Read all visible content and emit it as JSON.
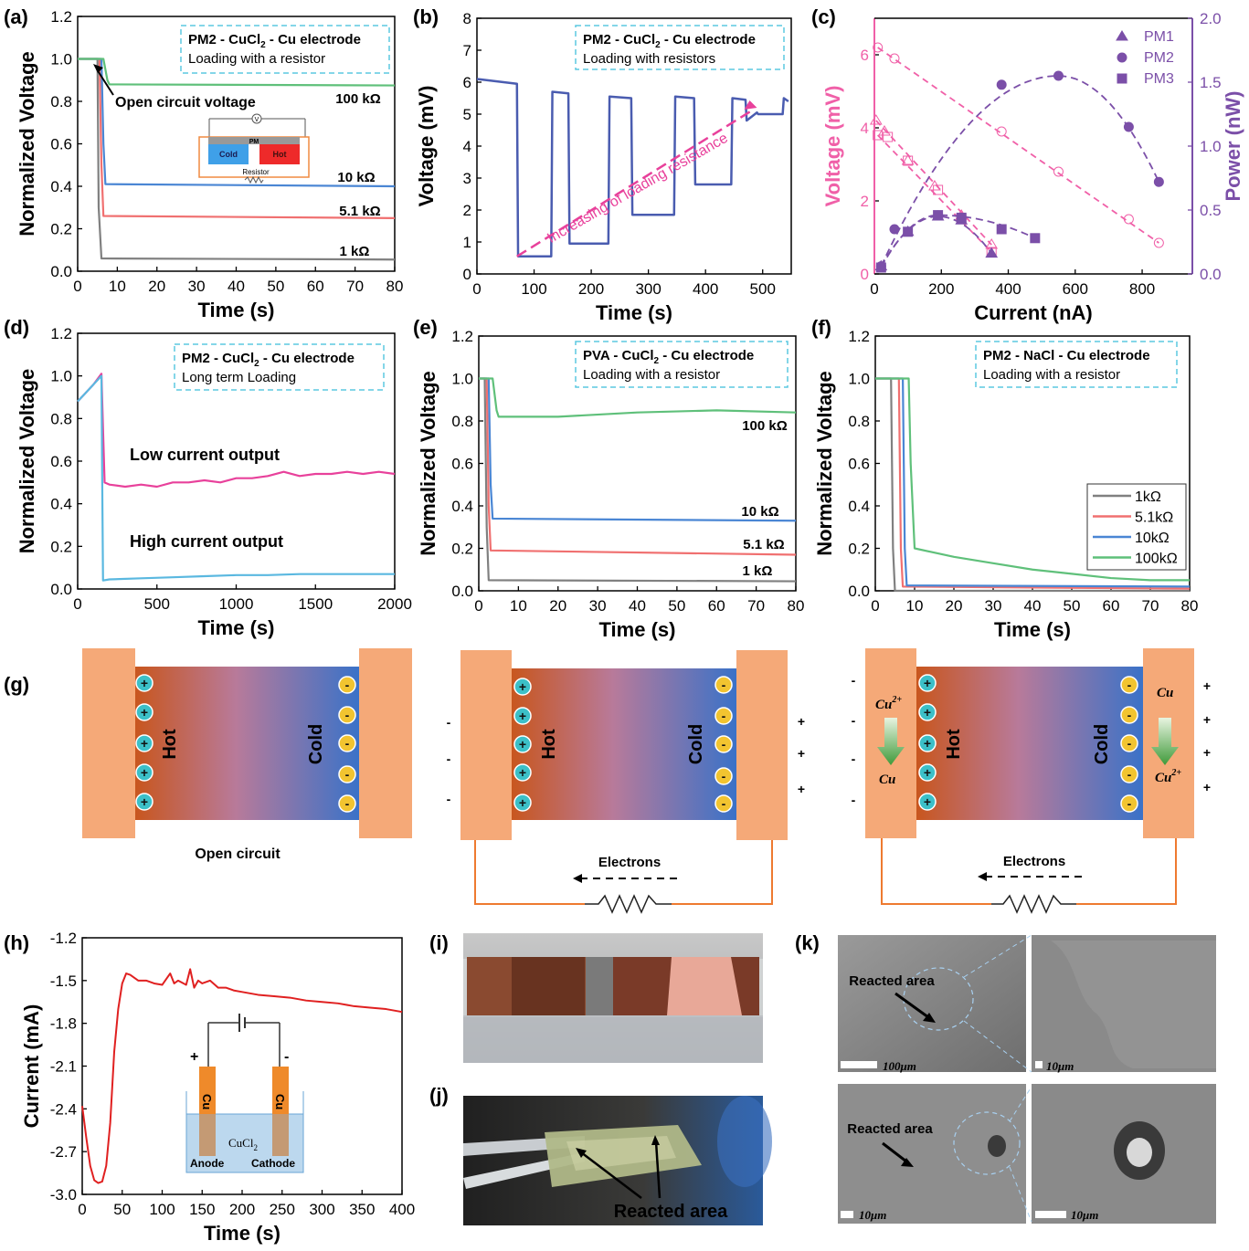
{
  "colors": {
    "gray": "#808080",
    "red": "#f07070",
    "blue": "#4a86d4",
    "green": "#5fc07a",
    "magenta": "#e8419b",
    "pink": "#f060a8",
    "purple": "#7b4fa8",
    "navy": "#4a5cb0",
    "cyan": "#5ab8e0",
    "orange": "#f5a978",
    "dash_box": "#5bc8e0",
    "trace_red": "#e02020"
  },
  "chart_data": [
    {
      "panel": "(a)",
      "type": "line",
      "box": [
        "PM2 - CuCl",
        "2",
        " - Cu electrode",
        "Loading with a resistor"
      ],
      "xlabel": "Time (s)",
      "ylabel": "Normalized Voltage",
      "xlim": [
        0,
        80
      ],
      "ylim": [
        0,
        1.2
      ],
      "xticks": [
        0,
        10,
        20,
        30,
        40,
        50,
        60,
        70,
        80
      ],
      "yticks": [
        0,
        0.2,
        0.4,
        0.6,
        0.8,
        1.0,
        1.2
      ],
      "series": [
        {
          "name": "1 kΩ",
          "color": "gray",
          "x": [
            0,
            5,
            5.3,
            6,
            80
          ],
          "y": [
            1.0,
            1.0,
            0.3,
            0.06,
            0.055
          ]
        },
        {
          "name": "5.1 kΩ",
          "color": "red",
          "x": [
            0,
            5.5,
            6,
            6.5,
            80
          ],
          "y": [
            1.0,
            1.0,
            0.5,
            0.26,
            0.25
          ]
        },
        {
          "name": "10 kΩ",
          "color": "blue",
          "x": [
            0,
            6,
            6.5,
            7,
            80
          ],
          "y": [
            1.0,
            1.0,
            0.6,
            0.41,
            0.4
          ]
        },
        {
          "name": "100 kΩ",
          "color": "green",
          "x": [
            0,
            6.5,
            7.5,
            8,
            80
          ],
          "y": [
            1.0,
            1.0,
            0.9,
            0.88,
            0.875
          ]
        }
      ],
      "annotations": [
        "Open circuit voltage",
        "100 kΩ",
        "10 kΩ",
        "5.1 kΩ",
        "1 kΩ"
      ],
      "inset": {
        "left": "Cold",
        "right": "Hot",
        "top": "PM",
        "bottom": "Resistor",
        "meter": "V"
      }
    },
    {
      "panel": "(b)",
      "type": "line",
      "box": [
        "PM2 - CuCl",
        "2",
        " - Cu electrode",
        "Loading with resistors"
      ],
      "xlabel": "Time (s)",
      "ylabel": "Voltage (mV)",
      "xlim": [
        0,
        550
      ],
      "ylim": [
        0,
        8
      ],
      "xticks": [
        0,
        100,
        200,
        300,
        400,
        500
      ],
      "yticks": [
        0,
        1,
        2,
        3,
        4,
        5,
        6,
        7,
        8
      ],
      "series": [
        {
          "name": "",
          "color": "navy",
          "x": [
            0,
            70,
            72,
            130,
            132,
            160,
            162,
            230,
            232,
            270,
            272,
            345,
            347,
            380,
            382,
            445,
            447,
            470,
            472,
            490,
            492,
            535,
            537,
            545
          ],
          "y": [
            6.1,
            5.95,
            0.55,
            0.55,
            5.7,
            5.65,
            0.95,
            0.95,
            5.55,
            5.5,
            1.85,
            1.85,
            5.55,
            5.5,
            2.8,
            2.8,
            5.5,
            5.45,
            4.8,
            5.05,
            5.0,
            5.0,
            5.5,
            5.4
          ]
        }
      ],
      "arrow_label": "Increasing of loading resistance"
    },
    {
      "panel": "(c)",
      "type": "scatter",
      "xlabel": "Current (nA)",
      "ylabel": "Voltage (mV)",
      "y2label": "Power (nW)",
      "xlim": [
        0,
        950
      ],
      "ylim": [
        0,
        7
      ],
      "y2lim": [
        0,
        2.0
      ],
      "xticks": [
        0,
        200,
        400,
        600,
        800
      ],
      "yticks": [
        0,
        2,
        4,
        6
      ],
      "y2ticks": [
        0.0,
        0.5,
        1.0,
        1.5,
        2.0
      ],
      "voltage_series": [
        {
          "name": "PM1",
          "x": [
            5,
            30,
            100,
            180,
            260,
            350
          ],
          "y": [
            4.2,
            3.9,
            3.1,
            2.4,
            1.6,
            0.8
          ]
        },
        {
          "name": "PM2",
          "x": [
            10,
            60,
            380,
            550,
            760,
            850
          ],
          "y": [
            6.2,
            5.9,
            3.9,
            2.8,
            1.5,
            0.85
          ]
        },
        {
          "name": "PM3",
          "x": [
            10,
            40,
            100,
            190,
            260,
            350
          ],
          "y": [
            3.8,
            3.75,
            3.1,
            2.3,
            1.5,
            0.6
          ]
        }
      ],
      "power_series": [
        {
          "name": "PM1",
          "x": [
            20,
            100,
            190,
            260,
            350
          ],
          "y": [
            0.06,
            0.33,
            0.45,
            0.42,
            0.16
          ]
        },
        {
          "name": "PM2",
          "x": [
            20,
            60,
            380,
            550,
            760,
            850
          ],
          "y": [
            0.06,
            0.35,
            1.48,
            1.55,
            1.15,
            0.72
          ]
        },
        {
          "name": "PM3",
          "x": [
            20,
            100,
            190,
            260,
            380,
            480
          ],
          "y": [
            0.05,
            0.33,
            0.46,
            0.44,
            0.35,
            0.28
          ]
        }
      ],
      "legend": [
        "PM1",
        "PM2",
        "PM3"
      ]
    },
    {
      "panel": "(d)",
      "type": "line",
      "box": [
        "PM2 - CuCl",
        "2",
        " - Cu electrode",
        "Long term Loading"
      ],
      "xlabel": "Time (s)",
      "ylabel": "Normalized Voltage",
      "xlim": [
        0,
        2000
      ],
      "ylim": [
        0,
        1.2
      ],
      "xticks": [
        0,
        500,
        1000,
        1500,
        2000
      ],
      "yticks": [
        0,
        0.2,
        0.4,
        0.6,
        0.8,
        1.0,
        1.2
      ],
      "series": [
        {
          "name": "Low current output",
          "color": "magenta",
          "x": [
            0,
            50,
            100,
            150,
            160,
            170,
            200,
            300,
            400,
            500,
            600,
            700,
            800,
            900,
            1000,
            1100,
            1200,
            1300,
            1400,
            1500,
            1600,
            1700,
            1800,
            1900,
            2000
          ],
          "y": [
            0.88,
            0.92,
            0.96,
            1.01,
            0.75,
            0.5,
            0.49,
            0.48,
            0.49,
            0.48,
            0.5,
            0.5,
            0.51,
            0.5,
            0.52,
            0.52,
            0.53,
            0.55,
            0.53,
            0.54,
            0.54,
            0.55,
            0.54,
            0.55,
            0.54
          ]
        },
        {
          "name": "High current output",
          "color": "cyan",
          "x": [
            0,
            50,
            100,
            150,
            155,
            160,
            200,
            400,
            600,
            800,
            1000,
            1200,
            1400,
            1600,
            1800,
            2000
          ],
          "y": [
            0.88,
            0.92,
            0.96,
            1.0,
            0.5,
            0.04,
            0.045,
            0.05,
            0.055,
            0.06,
            0.065,
            0.065,
            0.07,
            0.07,
            0.07,
            0.07
          ]
        }
      ],
      "annotations": [
        "Low current output",
        "High current output"
      ]
    },
    {
      "panel": "(e)",
      "type": "line",
      "box": [
        "PVA - CuCl",
        "2",
        " - Cu electrode",
        "Loading with a resistor"
      ],
      "xlabel": "Time (s)",
      "ylabel": "Normalized Voltage",
      "xlim": [
        0,
        80
      ],
      "ylim": [
        0,
        1.2
      ],
      "xticks": [
        0,
        10,
        20,
        30,
        40,
        50,
        60,
        70,
        80
      ],
      "yticks": [
        0,
        0.2,
        0.4,
        0.6,
        0.8,
        1.0,
        1.2
      ],
      "series": [
        {
          "name": "1 kΩ",
          "color": "gray",
          "x": [
            0,
            1.5,
            2,
            2.5,
            80
          ],
          "y": [
            1.0,
            1.0,
            0.3,
            0.05,
            0.045
          ]
        },
        {
          "name": "5.1 kΩ",
          "color": "red",
          "x": [
            0,
            2,
            2.5,
            3,
            80
          ],
          "y": [
            1.0,
            1.0,
            0.4,
            0.19,
            0.17
          ]
        },
        {
          "name": "10 kΩ",
          "color": "blue",
          "x": [
            0,
            2.5,
            3,
            3.5,
            80
          ],
          "y": [
            1.0,
            1.0,
            0.5,
            0.34,
            0.33
          ]
        },
        {
          "name": "100 kΩ",
          "color": "green",
          "x": [
            0,
            3.5,
            4.5,
            5,
            20,
            40,
            60,
            80
          ],
          "y": [
            1.0,
            1.0,
            0.85,
            0.82,
            0.82,
            0.84,
            0.85,
            0.84
          ]
        }
      ],
      "annotations": [
        "100 kΩ",
        "10 kΩ",
        "5.1 kΩ",
        "1 kΩ"
      ]
    },
    {
      "panel": "(f)",
      "type": "line",
      "box": [
        "PM2 - NaCl - Cu electrode",
        "",
        "",
        "Loading with a resistor"
      ],
      "xlabel": "Time (s)",
      "ylabel": "Normalized Voltage",
      "xlim": [
        0,
        80
      ],
      "ylim": [
        0,
        1.2
      ],
      "xticks": [
        0,
        10,
        20,
        30,
        40,
        50,
        60,
        70,
        80
      ],
      "yticks": [
        0,
        0.2,
        0.4,
        0.6,
        0.8,
        1.0,
        1.2
      ],
      "series": [
        {
          "name": "1kΩ",
          "color": "gray",
          "x": [
            0,
            4,
            4.5,
            5,
            80
          ],
          "y": [
            1.0,
            1.0,
            0.2,
            0.0,
            0.0
          ]
        },
        {
          "name": "5.1kΩ",
          "color": "red",
          "x": [
            0,
            6,
            6.5,
            7,
            80
          ],
          "y": [
            1.0,
            1.0,
            0.2,
            0.02,
            0.01
          ]
        },
        {
          "name": "10kΩ",
          "color": "blue",
          "x": [
            0,
            7,
            7.5,
            8,
            80
          ],
          "y": [
            1.0,
            1.0,
            0.2,
            0.025,
            0.02
          ]
        },
        {
          "name": "100kΩ",
          "color": "green",
          "x": [
            0,
            8.5,
            9,
            10,
            20,
            30,
            40,
            50,
            60,
            70,
            80
          ],
          "y": [
            1.0,
            1.0,
            0.6,
            0.2,
            0.16,
            0.13,
            0.1,
            0.08,
            0.06,
            0.05,
            0.05
          ]
        }
      ],
      "legend": [
        "1kΩ",
        "5.1kΩ",
        "10kΩ",
        "100kΩ"
      ]
    },
    {
      "panel": "(h)",
      "type": "line",
      "xlabel": "Time (s)",
      "ylabel": "Current (mA)",
      "xlim": [
        0,
        400
      ],
      "ylim": [
        -3.0,
        -1.2
      ],
      "xticks": [
        0,
        50,
        100,
        150,
        200,
        250,
        300,
        350,
        400
      ],
      "yticks": [
        -3.0,
        -2.7,
        -2.4,
        -2.1,
        -1.8,
        -1.5,
        -1.2
      ],
      "series": [
        {
          "name": "",
          "color": "trace_red",
          "x": [
            0,
            5,
            10,
            15,
            20,
            25,
            30,
            35,
            40,
            45,
            50,
            55,
            60,
            70,
            80,
            90,
            100,
            110,
            115,
            120,
            130,
            135,
            140,
            145,
            150,
            160,
            170,
            180,
            190,
            200,
            220,
            240,
            260,
            280,
            300,
            320,
            340,
            360,
            380,
            400
          ],
          "y": [
            -2.38,
            -2.6,
            -2.8,
            -2.9,
            -2.92,
            -2.91,
            -2.8,
            -2.5,
            -2.0,
            -1.7,
            -1.52,
            -1.45,
            -1.46,
            -1.5,
            -1.5,
            -1.52,
            -1.53,
            -1.45,
            -1.52,
            -1.5,
            -1.53,
            -1.42,
            -1.55,
            -1.5,
            -1.52,
            -1.5,
            -1.55,
            -1.55,
            -1.57,
            -1.58,
            -1.6,
            -1.61,
            -1.62,
            -1.64,
            -1.65,
            -1.66,
            -1.68,
            -1.69,
            -1.7,
            -1.72
          ]
        }
      ],
      "inset": {
        "plus": "+",
        "minus": "-",
        "left_electrode": "Cu",
        "right_electrode": "Cu",
        "solution": "CuCl",
        "solution_sub": "2",
        "anode": "Anode",
        "cathode": "Cathode"
      }
    }
  ],
  "panels": {
    "a": "(a)",
    "b": "(b)",
    "c": "(c)",
    "d": "(d)",
    "e": "(e)",
    "f": "(f)",
    "g": "(g)",
    "h": "(h)",
    "i": "(i)",
    "j": "(j)",
    "k": "(k)"
  },
  "schematic_g": {
    "hot": "Hot",
    "cold": "Cold",
    "plus": "+",
    "minus": "-",
    "open_circuit": "Open circuit",
    "electrons": "Electrons",
    "cu2": "Cu",
    "cu2_sup": "2+",
    "cu": "Cu"
  },
  "photo_j": {
    "label": "Reacted area"
  },
  "sem_k": {
    "reacted": "Reacted area",
    "scale_100": "100μm",
    "scale_10": "10μm"
  }
}
